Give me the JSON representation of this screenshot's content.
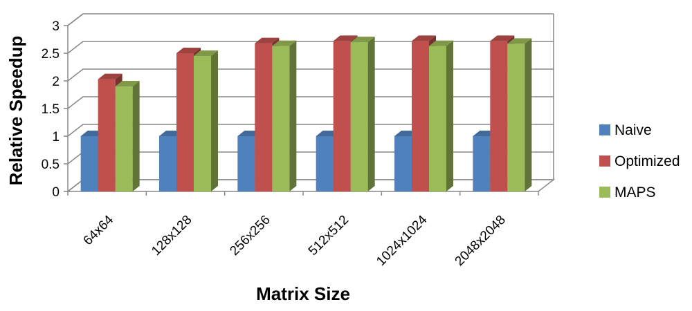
{
  "chart_data": {
    "type": "bar",
    "title": "",
    "xlabel": "Matrix Size",
    "ylabel": "Relative Speedup",
    "categories": [
      "64x64",
      "128x128",
      "256x256",
      "512x512",
      "1024x1024",
      "2048x2048"
    ],
    "series": [
      {
        "name": "Naive",
        "color": "#4F81BD",
        "values": [
          1,
          1,
          1,
          1,
          1,
          1
        ]
      },
      {
        "name": "Optimized",
        "color": "#C0504D",
        "values": [
          2.03,
          2.5,
          2.68,
          2.72,
          2.72,
          2.72
        ]
      },
      {
        "name": "MAPS",
        "color": "#9BBB59",
        "values": [
          1.9,
          2.45,
          2.63,
          2.7,
          2.63,
          2.67
        ]
      }
    ],
    "ylim": [
      0,
      3
    ],
    "yticks": [
      "0",
      "0.5",
      "1",
      "1.5",
      "2",
      "2.5",
      "3"
    ],
    "grid": true,
    "legend": "right",
    "style": "3d-clustered-bar"
  }
}
